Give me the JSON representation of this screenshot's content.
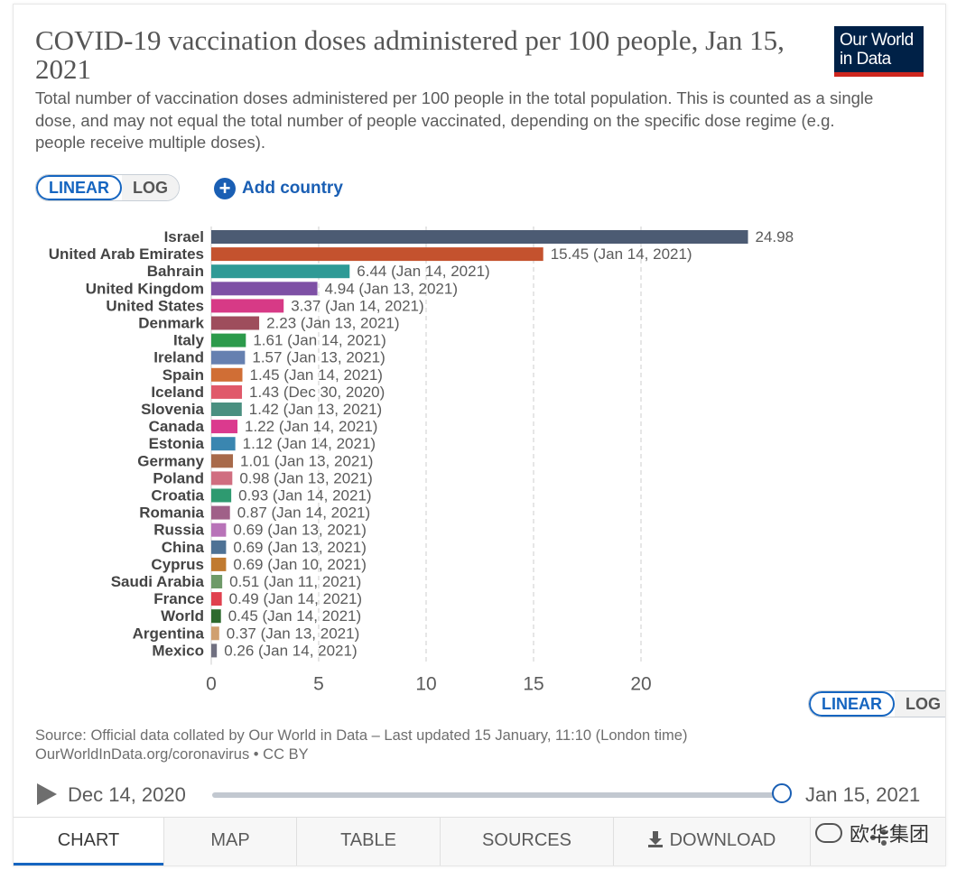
{
  "header": {
    "title": "COVID-19 vaccination doses administered per 100 people, Jan 15, 2021",
    "subtitle": "Total number of vaccination doses administered per 100 people in the total population. This is counted as a single dose, and may not equal the total number of people vaccinated, depending on the specific dose regime (e.g. people receive multiple doses).",
    "logo_line1": "Our World",
    "logo_line2": "in Data"
  },
  "controls": {
    "linear_label": "LINEAR",
    "log_label": "LOG",
    "add_country_label": "Add country"
  },
  "colors": {
    "accent": "#1565c0",
    "grid": "#dddddd",
    "bar_label": "#5b5b5b"
  },
  "chart_data": {
    "type": "bar",
    "orientation": "horizontal",
    "title": "COVID-19 vaccination doses administered per 100 people, Jan 15, 2021",
    "xlabel": "",
    "ylabel": "",
    "xlim": [
      0,
      25
    ],
    "xticks": [
      0,
      5,
      10,
      15,
      20
    ],
    "grid": true,
    "bars": [
      {
        "country": "Israel",
        "value": 24.98,
        "label": "24.98",
        "color": "#4c5b73"
      },
      {
        "country": "United Arab Emirates",
        "value": 15.45,
        "label": "15.45 (Jan 14, 2021)",
        "color": "#c4522e"
      },
      {
        "country": "Bahrain",
        "value": 6.44,
        "label": "6.44 (Jan 14, 2021)",
        "color": "#2e9a96"
      },
      {
        "country": "United Kingdom",
        "value": 4.94,
        "label": "4.94 (Jan 13, 2021)",
        "color": "#7e50a5"
      },
      {
        "country": "United States",
        "value": 3.37,
        "label": "3.37 (Jan 14, 2021)",
        "color": "#d73a86"
      },
      {
        "country": "Denmark",
        "value": 2.23,
        "label": "2.23 (Jan 13, 2021)",
        "color": "#9e4d5c"
      },
      {
        "country": "Italy",
        "value": 1.61,
        "label": "1.61 (Jan 14, 2021)",
        "color": "#2c9a4b"
      },
      {
        "country": "Ireland",
        "value": 1.57,
        "label": "1.57 (Jan 13, 2021)",
        "color": "#6680b0"
      },
      {
        "country": "Spain",
        "value": 1.45,
        "label": "1.45 (Jan 14, 2021)",
        "color": "#d06e35"
      },
      {
        "country": "Iceland",
        "value": 1.43,
        "label": "1.43 (Dec 30, 2020)",
        "color": "#e0596a"
      },
      {
        "country": "Slovenia",
        "value": 1.42,
        "label": "1.42 (Jan 13, 2021)",
        "color": "#4a8f80"
      },
      {
        "country": "Canada",
        "value": 1.22,
        "label": "1.22 (Jan 14, 2021)",
        "color": "#db3a8e"
      },
      {
        "country": "Estonia",
        "value": 1.12,
        "label": "1.12 (Jan 14, 2021)",
        "color": "#3a86b0"
      },
      {
        "country": "Germany",
        "value": 1.01,
        "label": "1.01 (Jan 13, 2021)",
        "color": "#a86a4a"
      },
      {
        "country": "Poland",
        "value": 0.98,
        "label": "0.98 (Jan 13, 2021)",
        "color": "#d06e80"
      },
      {
        "country": "Croatia",
        "value": 0.93,
        "label": "0.93 (Jan 14, 2021)",
        "color": "#2e9a70"
      },
      {
        "country": "Romania",
        "value": 0.87,
        "label": "0.87 (Jan 14, 2021)",
        "color": "#a06088"
      },
      {
        "country": "Russia",
        "value": 0.69,
        "label": "0.69 (Jan 13, 2021)",
        "color": "#b873b8"
      },
      {
        "country": "China",
        "value": 0.69,
        "label": "0.69 (Jan 13, 2021)",
        "color": "#4e7295"
      },
      {
        "country": "Cyprus",
        "value": 0.69,
        "label": "0.69 (Jan 10, 2021)",
        "color": "#c07a30"
      },
      {
        "country": "Saudi Arabia",
        "value": 0.51,
        "label": "0.51 (Jan 11, 2021)",
        "color": "#6e9a68"
      },
      {
        "country": "France",
        "value": 0.49,
        "label": "0.49 (Jan 14, 2021)",
        "color": "#e0404e"
      },
      {
        "country": "World",
        "value": 0.45,
        "label": "0.45 (Jan 14, 2021)",
        "color": "#2e6a2e"
      },
      {
        "country": "Argentina",
        "value": 0.37,
        "label": "0.37 (Jan 13, 2021)",
        "color": "#d0a070"
      },
      {
        "country": "Mexico",
        "value": 0.26,
        "label": "0.26 (Jan 14, 2021)",
        "color": "#707080"
      }
    ]
  },
  "footer": {
    "source": "Source: Official data collated by Our World in Data – Last updated 15 January, 11:10 (London time)",
    "license": "OurWorldInData.org/coronavirus • CC BY"
  },
  "timeline": {
    "start_label": "Dec 14, 2020",
    "end_label": "Jan 15, 2021",
    "position": 1.0
  },
  "tabs": {
    "chart": "CHART",
    "map": "MAP",
    "table": "TABLE",
    "sources": "SOURCES",
    "download": "DOWNLOAD"
  },
  "watermark": {
    "text": "欧华集团"
  }
}
